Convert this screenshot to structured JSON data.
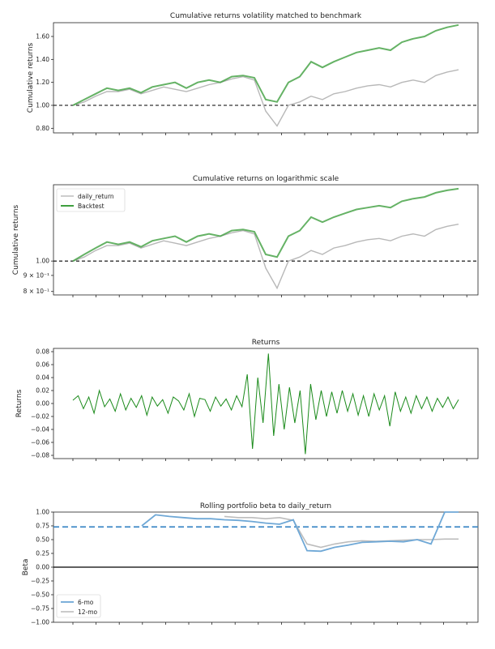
{
  "colors": {
    "backtest": "#3f9f3f",
    "benchmark": "#b8b8b8",
    "returns": "#1a8a1a",
    "beta6": "#6fa8d6",
    "beta12": "#bdbdbd",
    "dashed_blue": "#2f7fc1",
    "dashed_black": "#000000"
  },
  "chart_data": [
    {
      "type": "line",
      "title": "Cumulative returns volatility matched to benchmark",
      "ylabel": "Cumulative returns",
      "yticks": [
        "0.80",
        "1.00",
        "1.20",
        "1.40",
        "1.60"
      ],
      "ylim": [
        0.76,
        1.72
      ],
      "reference_line": 1.0,
      "series": [
        {
          "name": "Backtest",
          "values": [
            1.0,
            1.05,
            1.1,
            1.15,
            1.13,
            1.15,
            1.11,
            1.16,
            1.18,
            1.2,
            1.15,
            1.2,
            1.22,
            1.2,
            1.25,
            1.26,
            1.24,
            1.05,
            1.03,
            1.2,
            1.25,
            1.38,
            1.33,
            1.38,
            1.42,
            1.46,
            1.48,
            1.5,
            1.48,
            1.55,
            1.58,
            1.6,
            1.65,
            1.68,
            1.7
          ]
        },
        {
          "name": "daily_return",
          "values": [
            1.0,
            1.03,
            1.08,
            1.12,
            1.12,
            1.14,
            1.1,
            1.13,
            1.16,
            1.14,
            1.12,
            1.15,
            1.18,
            1.2,
            1.23,
            1.25,
            1.22,
            0.95,
            0.82,
            1.0,
            1.03,
            1.08,
            1.05,
            1.1,
            1.12,
            1.15,
            1.17,
            1.18,
            1.16,
            1.2,
            1.22,
            1.2,
            1.26,
            1.29,
            1.31
          ]
        }
      ]
    },
    {
      "type": "line",
      "title": "Cumulative returns on logarithmic scale",
      "ylabel": "Cumulative returns",
      "yscale": "log",
      "ylim": [
        0.78,
        1.75
      ],
      "yticks": [
        "1.00",
        "9 × 10⁻¹",
        "8 × 10⁻¹"
      ],
      "reference_line": 1.0,
      "legend": [
        "daily_return",
        "Backtest"
      ],
      "legend_position": "top-left",
      "series": [
        {
          "name": "daily_return",
          "values": [
            1.0,
            1.03,
            1.08,
            1.12,
            1.12,
            1.14,
            1.1,
            1.13,
            1.16,
            1.14,
            1.12,
            1.15,
            1.18,
            1.2,
            1.23,
            1.25,
            1.22,
            0.95,
            0.82,
            1.0,
            1.03,
            1.08,
            1.05,
            1.1,
            1.12,
            1.15,
            1.17,
            1.18,
            1.16,
            1.2,
            1.22,
            1.2,
            1.26,
            1.29,
            1.31
          ]
        },
        {
          "name": "Backtest",
          "values": [
            1.0,
            1.05,
            1.1,
            1.15,
            1.13,
            1.15,
            1.11,
            1.16,
            1.18,
            1.2,
            1.15,
            1.2,
            1.22,
            1.2,
            1.25,
            1.26,
            1.24,
            1.05,
            1.03,
            1.2,
            1.25,
            1.38,
            1.33,
            1.38,
            1.42,
            1.46,
            1.48,
            1.5,
            1.48,
            1.55,
            1.58,
            1.6,
            1.65,
            1.68,
            1.7
          ]
        }
      ]
    },
    {
      "type": "line",
      "title": "Returns",
      "ylabel": "Returns",
      "ylim": [
        -0.085,
        0.085
      ],
      "yticks": [
        "0.08",
        "0.06",
        "0.04",
        "0.02",
        "0.00",
        "−0.02",
        "−0.04",
        "−0.06",
        "−0.08"
      ],
      "series": [
        {
          "name": "",
          "values": [
            0.005,
            0.012,
            -0.008,
            0.01,
            -0.015,
            0.02,
            -0.005,
            0.007,
            -0.012,
            0.015,
            -0.01,
            0.008,
            -0.006,
            0.012,
            -0.018,
            0.01,
            -0.004,
            0.006,
            -0.015,
            0.01,
            0.004,
            -0.01,
            0.015,
            -0.02,
            0.008,
            0.006,
            -0.012,
            0.01,
            -0.004,
            0.007,
            -0.01,
            0.012,
            -0.005,
            0.045,
            -0.07,
            0.04,
            -0.03,
            0.077,
            -0.05,
            0.03,
            -0.04,
            0.025,
            -0.03,
            0.02,
            -0.078,
            0.03,
            -0.025,
            0.02,
            -0.02,
            0.018,
            -0.015,
            0.02,
            -0.012,
            0.015,
            -0.018,
            0.012,
            -0.02,
            0.015,
            -0.01,
            0.012,
            -0.035,
            0.018,
            -0.012,
            0.01,
            -0.015,
            0.012,
            -0.008,
            0.01,
            -0.012,
            0.008,
            -0.006,
            0.01,
            -0.008,
            0.006
          ]
        }
      ]
    },
    {
      "type": "line",
      "title": "Rolling portfolio beta to daily_return",
      "ylabel": "Beta",
      "ylim": [
        -1.0,
        1.0
      ],
      "yticks": [
        "1.00",
        "0.75",
        "0.50",
        "0.25",
        "0.00",
        "−0.25",
        "−0.50",
        "−0.75",
        "−1.00"
      ],
      "reference_line_dashed": 0.73,
      "reference_line_solid": 0.0,
      "legend": [
        "6-mo",
        "12-mo"
      ],
      "legend_position": "bottom-left",
      "series": [
        {
          "name": "6-mo",
          "values": [
            null,
            null,
            null,
            null,
            null,
            0.75,
            0.95,
            0.92,
            0.9,
            0.88,
            0.88,
            0.86,
            0.85,
            0.83,
            0.8,
            0.78,
            0.86,
            0.3,
            0.29,
            0.36,
            0.4,
            0.45,
            0.46,
            0.47,
            0.46,
            0.5,
            0.42,
            1.0,
            1.0
          ]
        },
        {
          "name": "12-mo",
          "values": [
            null,
            null,
            null,
            null,
            null,
            null,
            null,
            null,
            null,
            null,
            null,
            0.92,
            0.9,
            0.9,
            0.88,
            0.9,
            0.85,
            0.42,
            0.36,
            0.42,
            0.46,
            0.48,
            0.47,
            0.48,
            0.49,
            0.5,
            0.5,
            0.51,
            0.51
          ]
        }
      ]
    }
  ]
}
